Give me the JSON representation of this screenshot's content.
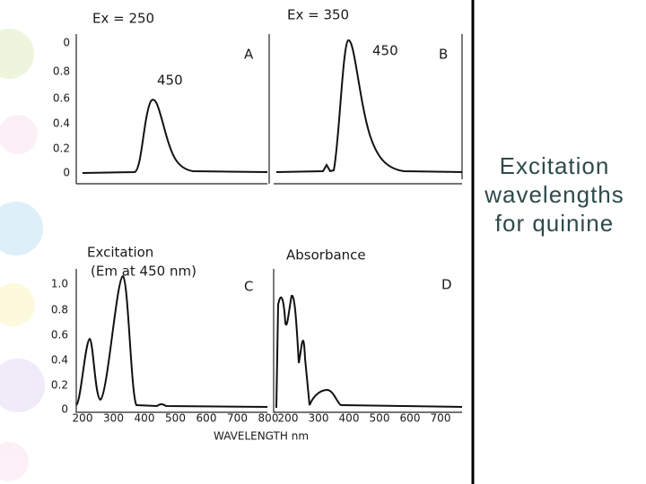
{
  "slide": {
    "title": [
      "Excitation",
      "wavelengths",
      "for quinine"
    ],
    "panels": [
      {
        "label": "A",
        "heading": "Ex = 250",
        "peak_label": "450"
      },
      {
        "label": "B",
        "heading": "Ex = 350",
        "peak_label": "450"
      },
      {
        "label": "C",
        "heading": [
          "Excitation",
          "(Em at 450 nm)"
        ]
      },
      {
        "label": "D",
        "heading": "Absorbance"
      }
    ],
    "upper_y_ticks": [
      "0",
      "0.8",
      "0.6",
      "0.4",
      "0.2",
      "0"
    ],
    "lower_y_ticks": [
      "1.0",
      "0.8",
      "0.6",
      "0.4",
      "0.2",
      "0"
    ],
    "lower_left_x_ticks": [
      "200",
      "300",
      "400",
      "500",
      "600",
      "700",
      "800"
    ],
    "lower_right_x_ticks": [
      "200",
      "300",
      "400",
      "500",
      "600",
      "700"
    ],
    "x_axis_label": "WAVELENGTH nm"
  }
}
